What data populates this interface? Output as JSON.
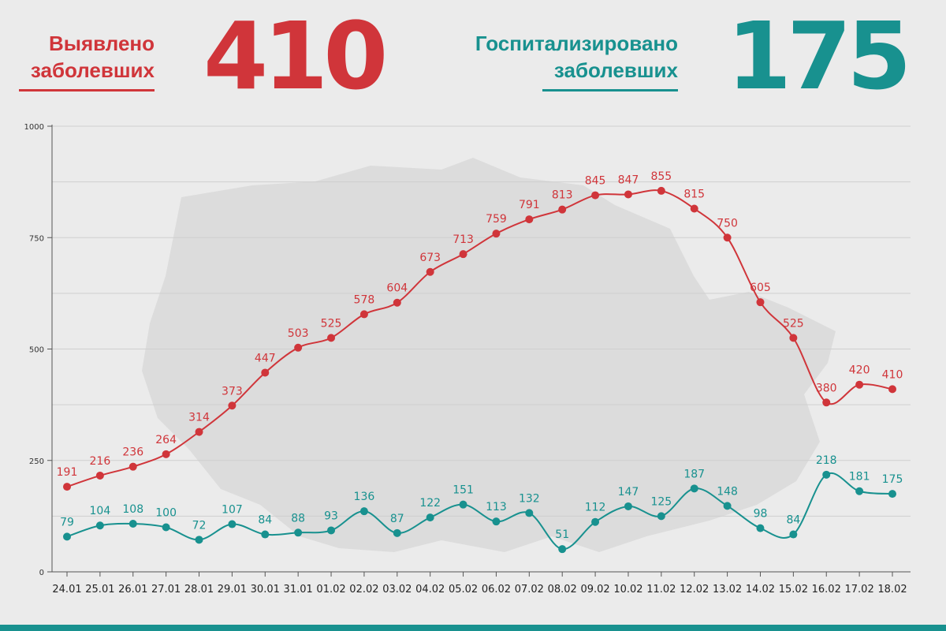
{
  "header": {
    "detected": {
      "label_line1": "Выявлено",
      "label_line2": "заболевших",
      "value": "410",
      "color": "#d0353a"
    },
    "hospitalized": {
      "label_line1": "Госпитализировано",
      "label_line2": "заболевших",
      "value": "175",
      "color": "#18918f"
    }
  },
  "colors": {
    "background": "#ebebeb",
    "grid": "#cfcfcf",
    "axis": "#555555",
    "map_silhouette": "#dcdcdc",
    "bottom_bar": "#18918f"
  },
  "chart_data": {
    "type": "line",
    "title": "",
    "xlabel": "",
    "ylabel": "",
    "ylim": [
      0,
      1000
    ],
    "yticks": [
      0,
      250,
      500,
      750,
      1000
    ],
    "grid": true,
    "categories": [
      "24.01",
      "25.01",
      "26.01",
      "27.01",
      "28.01",
      "29.01",
      "30.01",
      "31.01",
      "01.02",
      "02.02",
      "03.02",
      "04.02",
      "05.02",
      "06.02",
      "07.02",
      "08.02",
      "09.02",
      "10.02",
      "11.02",
      "12.02",
      "13.02",
      "14.02",
      "15.02",
      "16.02",
      "17.02",
      "18.02"
    ],
    "series": [
      {
        "color": "#d0353a",
        "values": [
          191,
          216,
          236,
          264,
          314,
          373,
          447,
          503,
          525,
          578,
          604,
          673,
          713,
          759,
          791,
          813,
          845,
          847,
          855,
          815,
          750,
          605,
          525,
          380,
          420,
          410
        ]
      },
      {
        "color": "#18918f",
        "values": [
          79,
          104,
          108,
          100,
          72,
          107,
          84,
          88,
          93,
          136,
          87,
          122,
          151,
          113,
          132,
          51,
          112,
          147,
          125,
          187,
          148,
          98,
          84,
          218,
          181,
          175
        ]
      }
    ]
  }
}
